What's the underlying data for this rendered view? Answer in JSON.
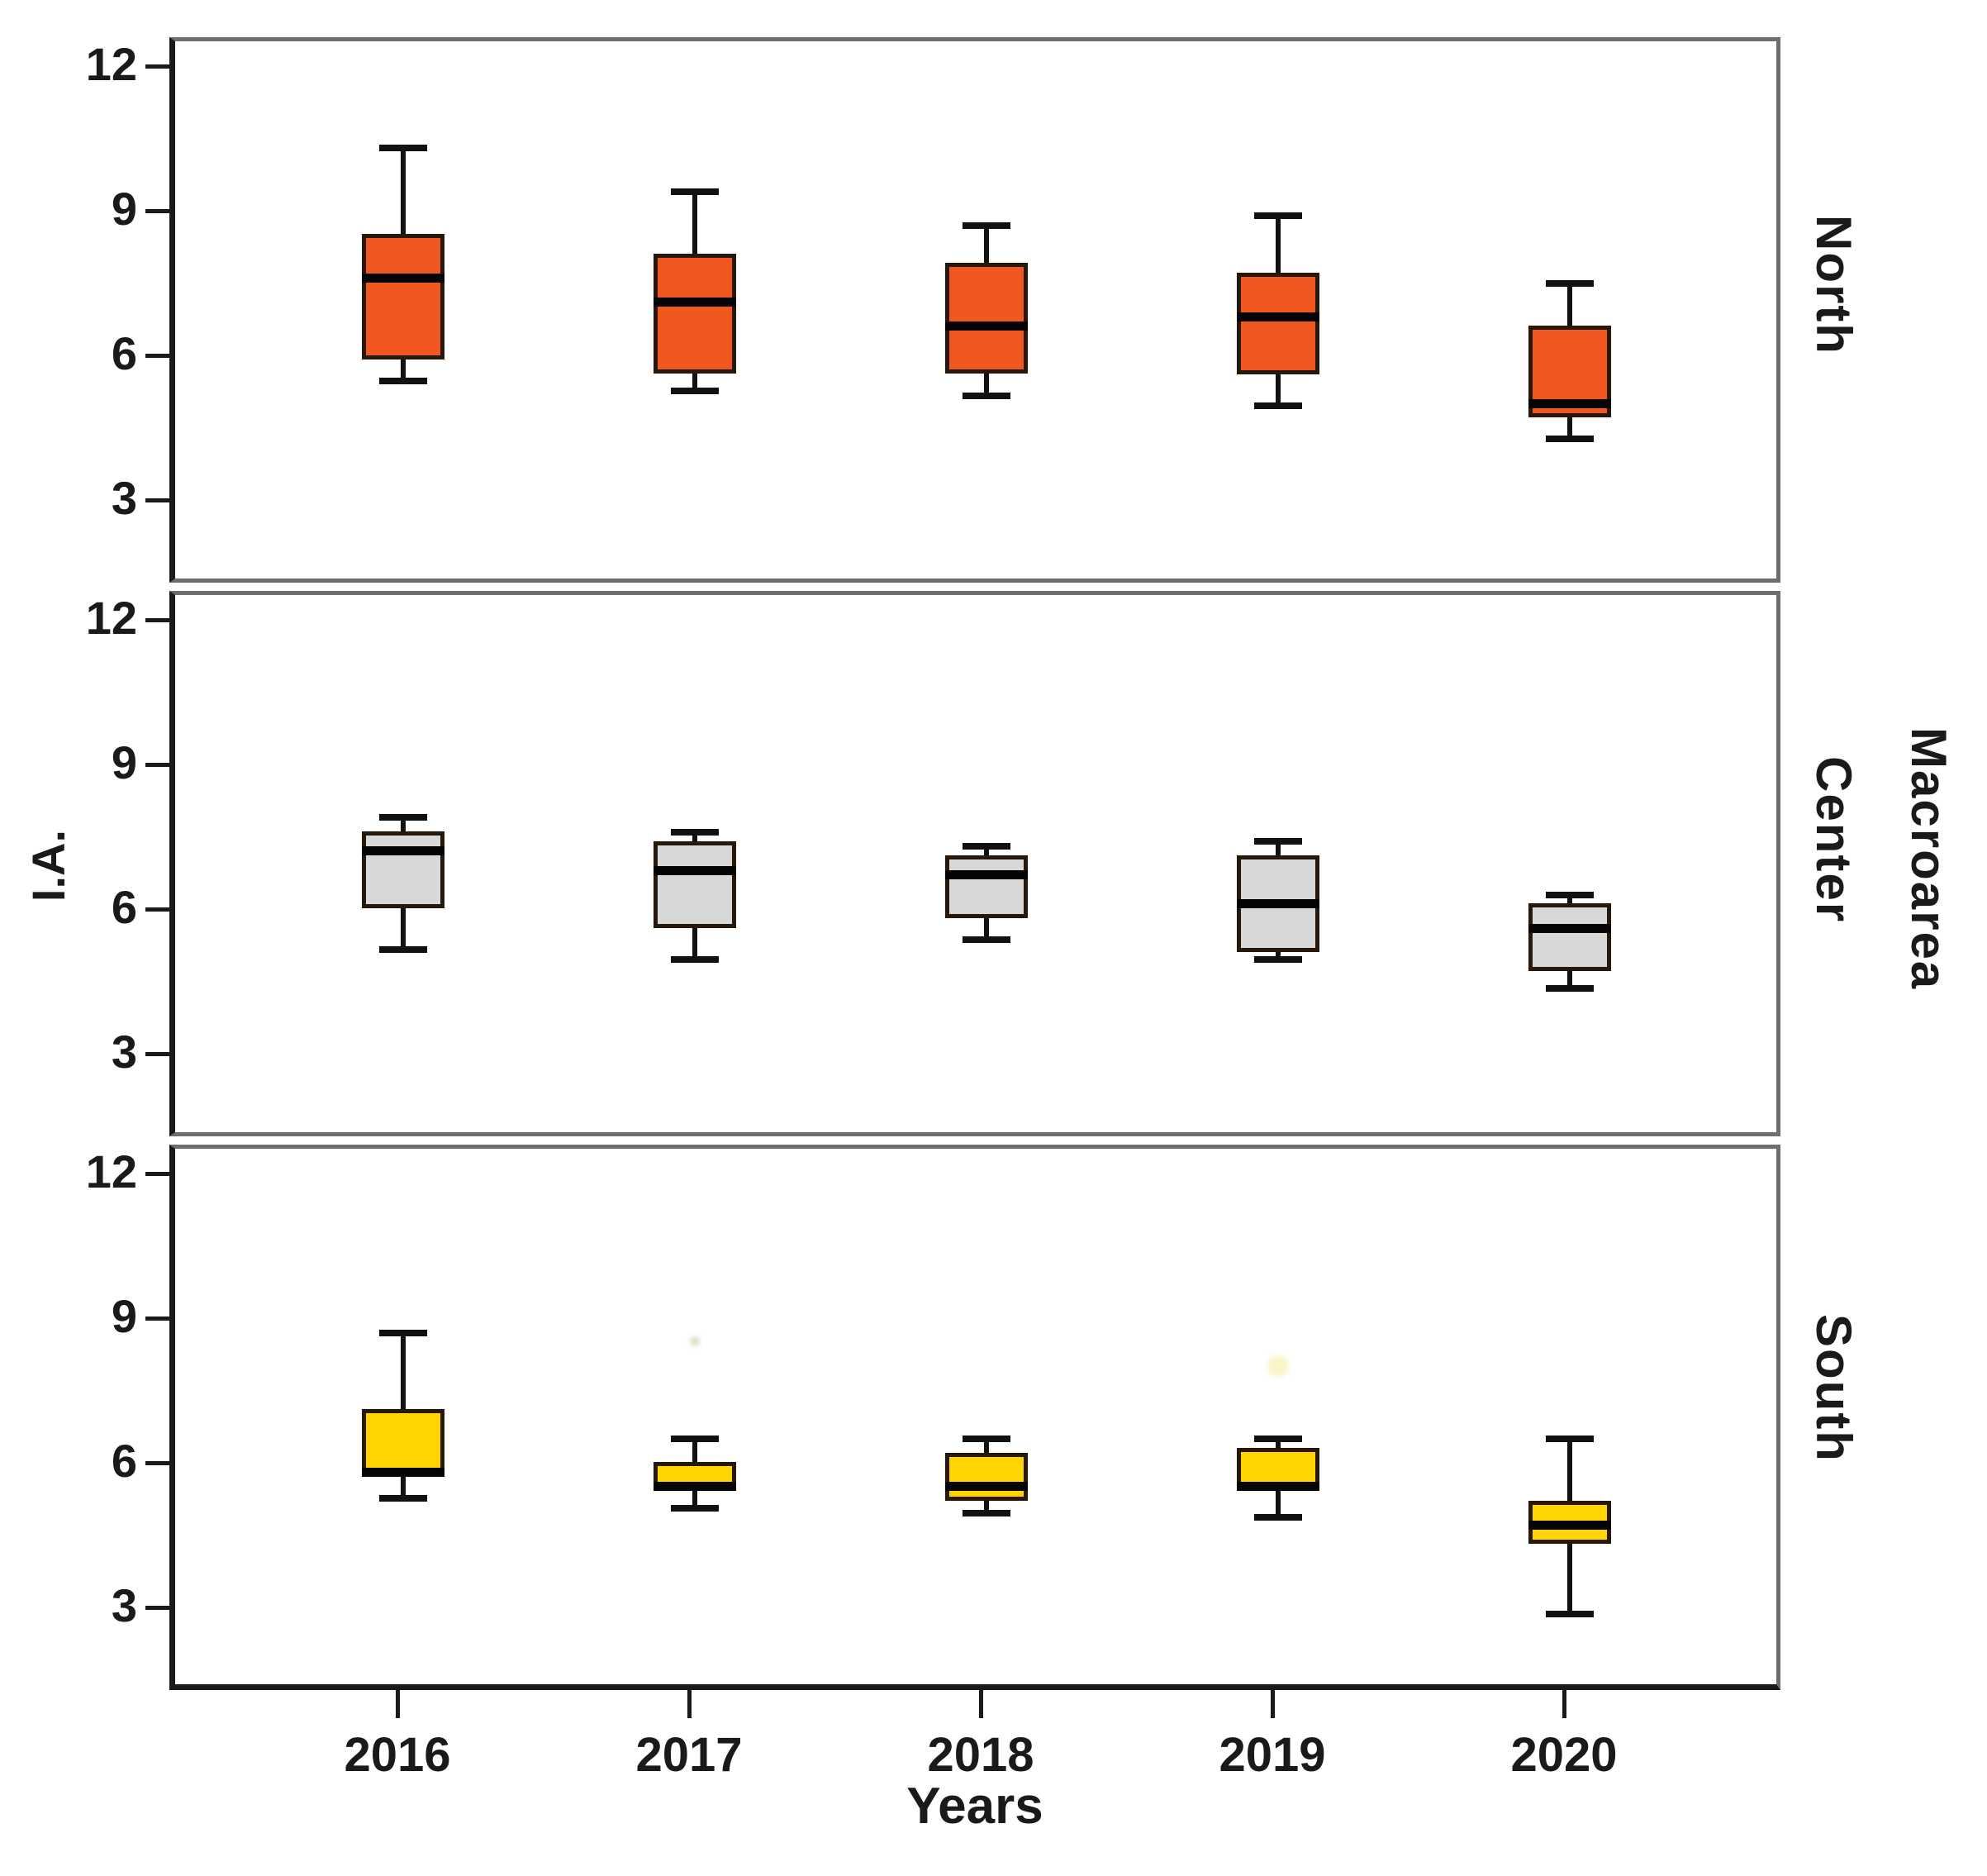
{
  "chart_data": {
    "type": "boxplot",
    "title": "",
    "xlabel": "Years",
    "ylabel": "I.A.",
    "panel_group_label": "Macroarea",
    "categories": [
      "2016",
      "2017",
      "2018",
      "2019",
      "2020"
    ],
    "y_ticks": [
      12,
      9,
      6,
      3
    ],
    "y_axis_range_note": "each panel shows I.A. from ~2 to ~12.6, ticks every 3 units",
    "grid": "off",
    "layout": "three vertically stacked panels sharing x-axis, panel labels on right side",
    "panels": [
      {
        "name": "North",
        "box_fill": "#F1581F",
        "series": [
          {
            "year": "2016",
            "low": 5.6,
            "q1": 6.0,
            "median": 7.7,
            "q3": 8.6,
            "high": 10.3
          },
          {
            "year": "2017",
            "low": 5.4,
            "q1": 5.7,
            "median": 7.2,
            "q3": 8.2,
            "high": 9.4
          },
          {
            "year": "2018",
            "low": 5.3,
            "q1": 5.7,
            "median": 6.7,
            "q3": 8.0,
            "high": 8.7
          },
          {
            "year": "2019",
            "low": 5.1,
            "q1": 5.7,
            "median": 6.9,
            "q3": 7.8,
            "high": 8.9
          },
          {
            "year": "2020",
            "low": 4.4,
            "q1": 4.8,
            "median": 5.1,
            "q3": 6.7,
            "high": 7.5
          }
        ]
      },
      {
        "name": "Center",
        "box_fill": "#D8D8D8",
        "series": [
          {
            "year": "2016",
            "low": 5.3,
            "q1": 6.1,
            "median": 7.3,
            "q3": 7.7,
            "high": 7.9
          },
          {
            "year": "2017",
            "low": 5.1,
            "q1": 5.7,
            "median": 6.9,
            "q3": 7.5,
            "high": 7.6
          },
          {
            "year": "2018",
            "low": 5.5,
            "q1": 5.9,
            "median": 6.8,
            "q3": 7.2,
            "high": 7.3
          },
          {
            "year": "2019",
            "low": 5.1,
            "q1": 5.2,
            "median": 6.2,
            "q3": 7.2,
            "high": 7.4
          },
          {
            "year": "2020",
            "low": 4.5,
            "q1": 4.8,
            "median": 5.7,
            "q3": 6.2,
            "high": 6.3
          }
        ]
      },
      {
        "name": "South",
        "box_fill": "#FFD400",
        "series": [
          {
            "year": "2016",
            "low": 5.4,
            "q1": 5.8,
            "median": 5.9,
            "q3": 7.2,
            "high": 8.7
          },
          {
            "year": "2017",
            "low": 5.2,
            "q1": 5.5,
            "median": 5.6,
            "q3": 6.1,
            "high": 6.5,
            "outliers": [
              {
                "value": 8.6,
                "color": "#dde0c8",
                "size": 12
              }
            ]
          },
          {
            "year": "2018",
            "low": 5.1,
            "q1": 5.3,
            "median": 5.6,
            "q3": 6.3,
            "high": 6.5
          },
          {
            "year": "2019",
            "low": 5.0,
            "q1": 5.5,
            "median": 5.6,
            "q3": 6.4,
            "high": 6.5,
            "outliers": [
              {
                "value": 8.1,
                "color": "#faf5c8",
                "size": 26
              }
            ]
          },
          {
            "year": "2020",
            "low": 3.0,
            "q1": 4.4,
            "median": 4.8,
            "q3": 5.3,
            "high": 6.5
          }
        ]
      }
    ]
  }
}
